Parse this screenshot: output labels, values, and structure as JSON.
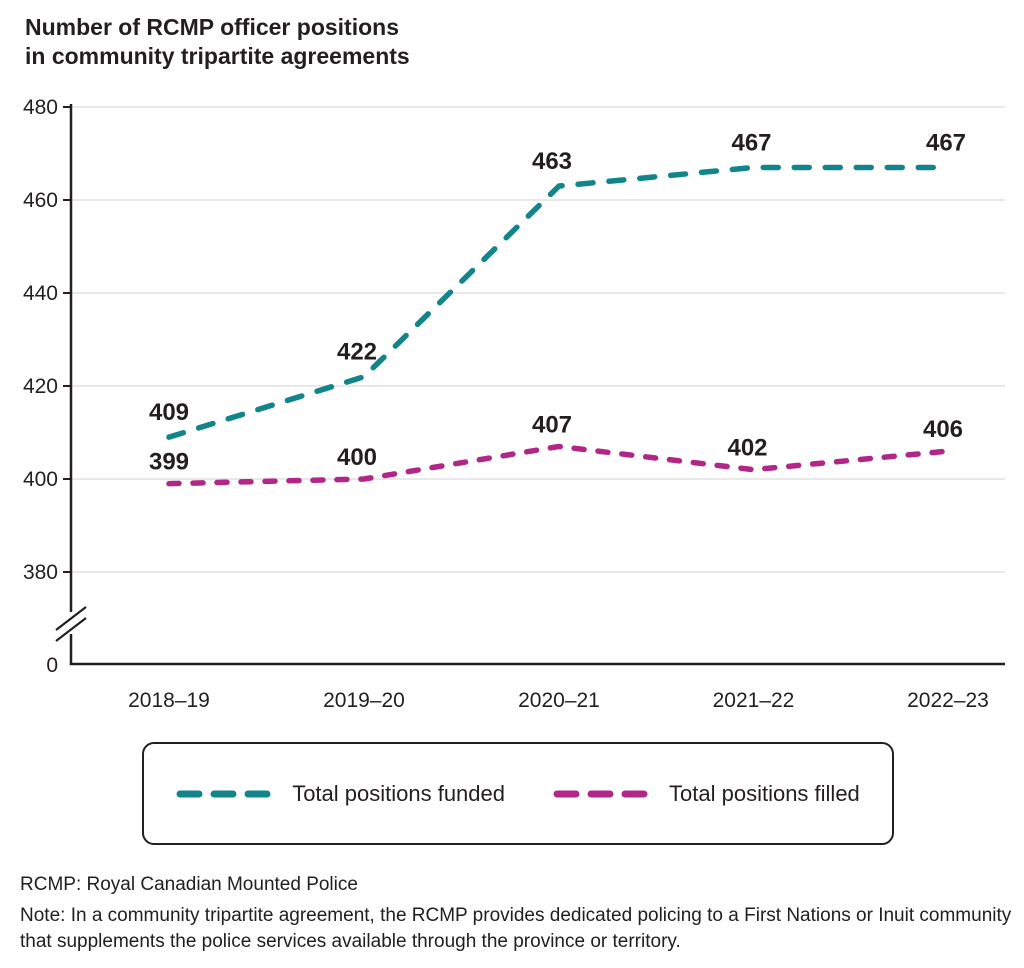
{
  "title": {
    "line1": "Number of RCMP officer positions",
    "line2": "in community tripartite agreements"
  },
  "chart_data": {
    "type": "line",
    "categories": [
      "2018–19",
      "2019–20",
      "2020–21",
      "2021–22",
      "2022–23"
    ],
    "series": [
      {
        "name": "Total positions funded",
        "color": "#12858a",
        "values": [
          409,
          422,
          463,
          467,
          467
        ],
        "style": "dashed"
      },
      {
        "name": "Total positions filled",
        "color": "#b12687",
        "values": [
          399,
          400,
          407,
          402,
          406
        ],
        "style": "dashed"
      }
    ],
    "ylabel": "",
    "xlabel": "",
    "ylim": [
      380,
      480
    ],
    "y_ticks": [
      480,
      460,
      440,
      420,
      400,
      380
    ],
    "y_origin_label": "0",
    "y_axis_break": true,
    "grid": true,
    "data_labels": true,
    "legend_position": "bottom"
  },
  "legend": {
    "items": [
      {
        "label": "Total positions funded",
        "color": "#12858a"
      },
      {
        "label": "Total positions filled",
        "color": "#b12687"
      }
    ]
  },
  "footnotes": {
    "abbr": "RCMP: Royal Canadian Mounted Police",
    "note": "Note: In a community tripartite agreement, the RCMP provides dedicated policing to a First Nations or Inuit community that supplements the police services available through the province or territory."
  },
  "colors": {
    "axis": "#231f20",
    "gridline": "#d9d9d9",
    "text": "#231f20"
  }
}
